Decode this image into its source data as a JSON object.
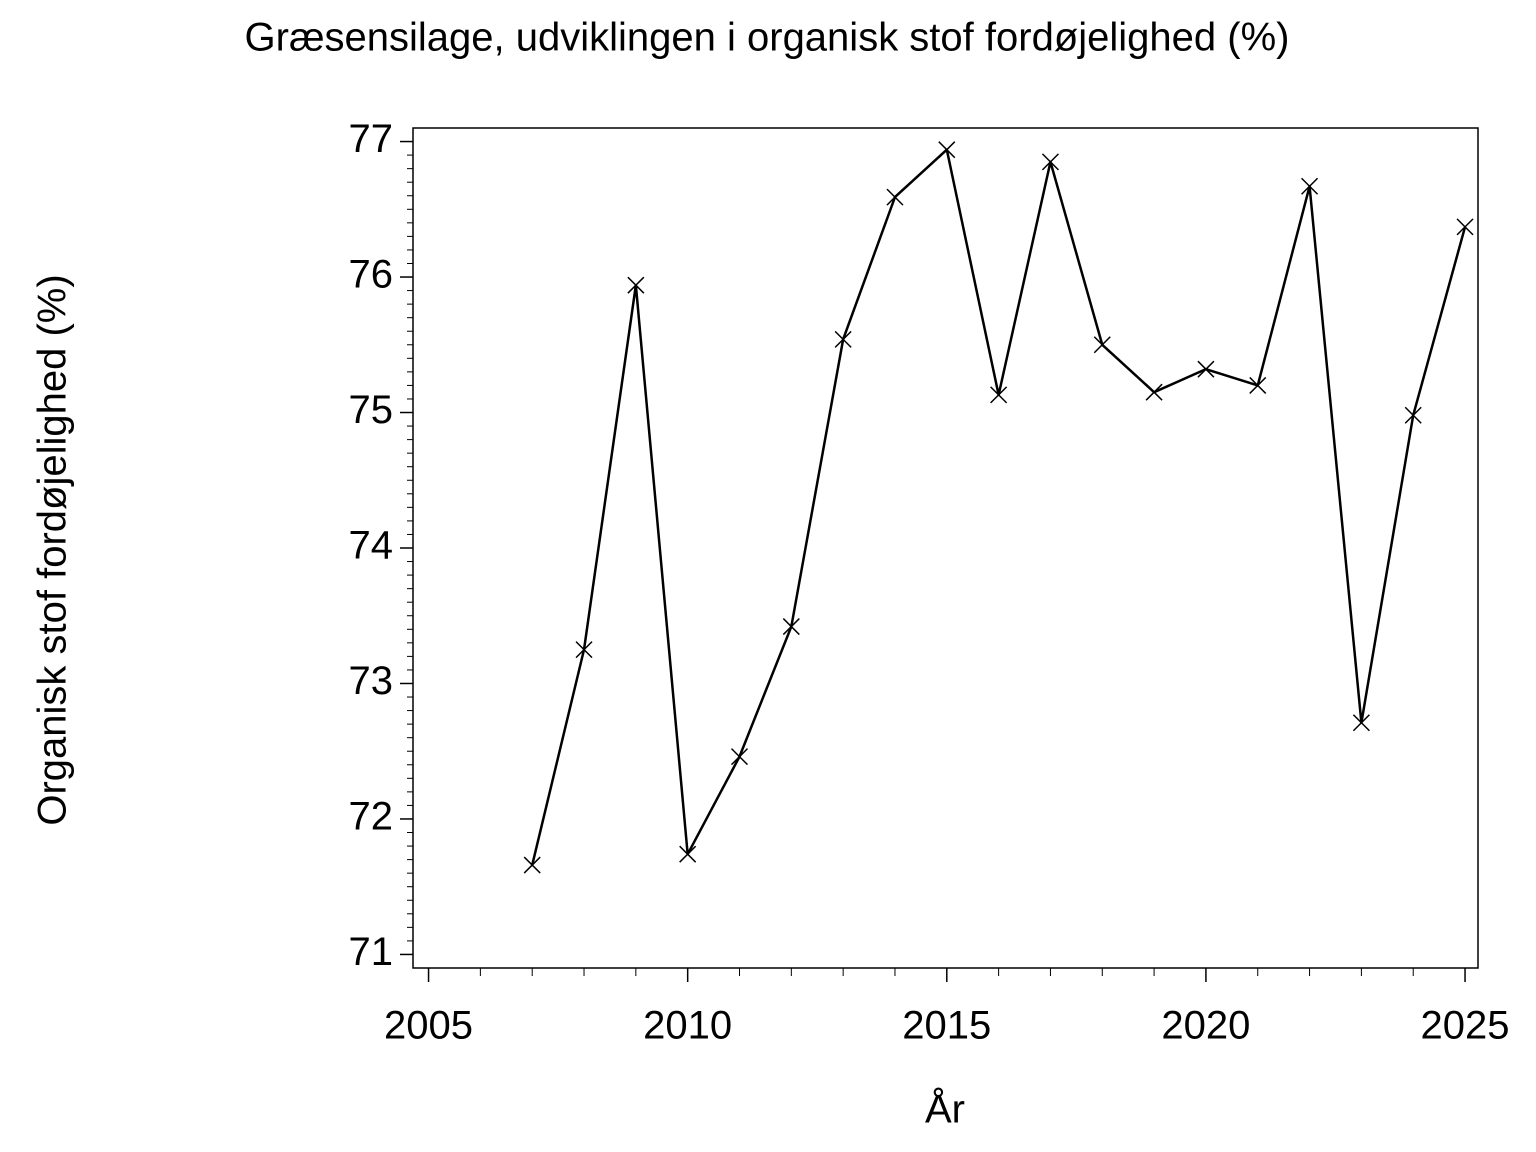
{
  "chart_data": {
    "type": "line",
    "title": "Græsensilage, udviklingen i organisk stof fordøjelighed (%)",
    "x_label": "År",
    "y_label": "Organisk stof fordøjelighed (%)",
    "x": [
      2007,
      2008,
      2009,
      2010,
      2011,
      2012,
      2013,
      2014,
      2015,
      2016,
      2017,
      2018,
      2019,
      2020,
      2021,
      2022,
      2023,
      2024,
      2025
    ],
    "series": [
      {
        "name": "Organisk stof fordøjelighed",
        "color": "#000000",
        "values": [
          71.66,
          73.25,
          75.94,
          71.74,
          72.46,
          73.42,
          75.54,
          76.59,
          76.94,
          75.13,
          76.85,
          75.5,
          75.15,
          75.32,
          75.2,
          76.67,
          72.71,
          74.98,
          76.37
        ]
      }
    ],
    "xlim": [
      2004.7,
      2025.25
    ],
    "xticks": [
      2005,
      2010,
      2015,
      2020,
      2025
    ],
    "ylim": [
      70.9,
      77.1
    ],
    "yticks": [
      71,
      72,
      73,
      74,
      75,
      76,
      77
    ],
    "grid": false
  }
}
